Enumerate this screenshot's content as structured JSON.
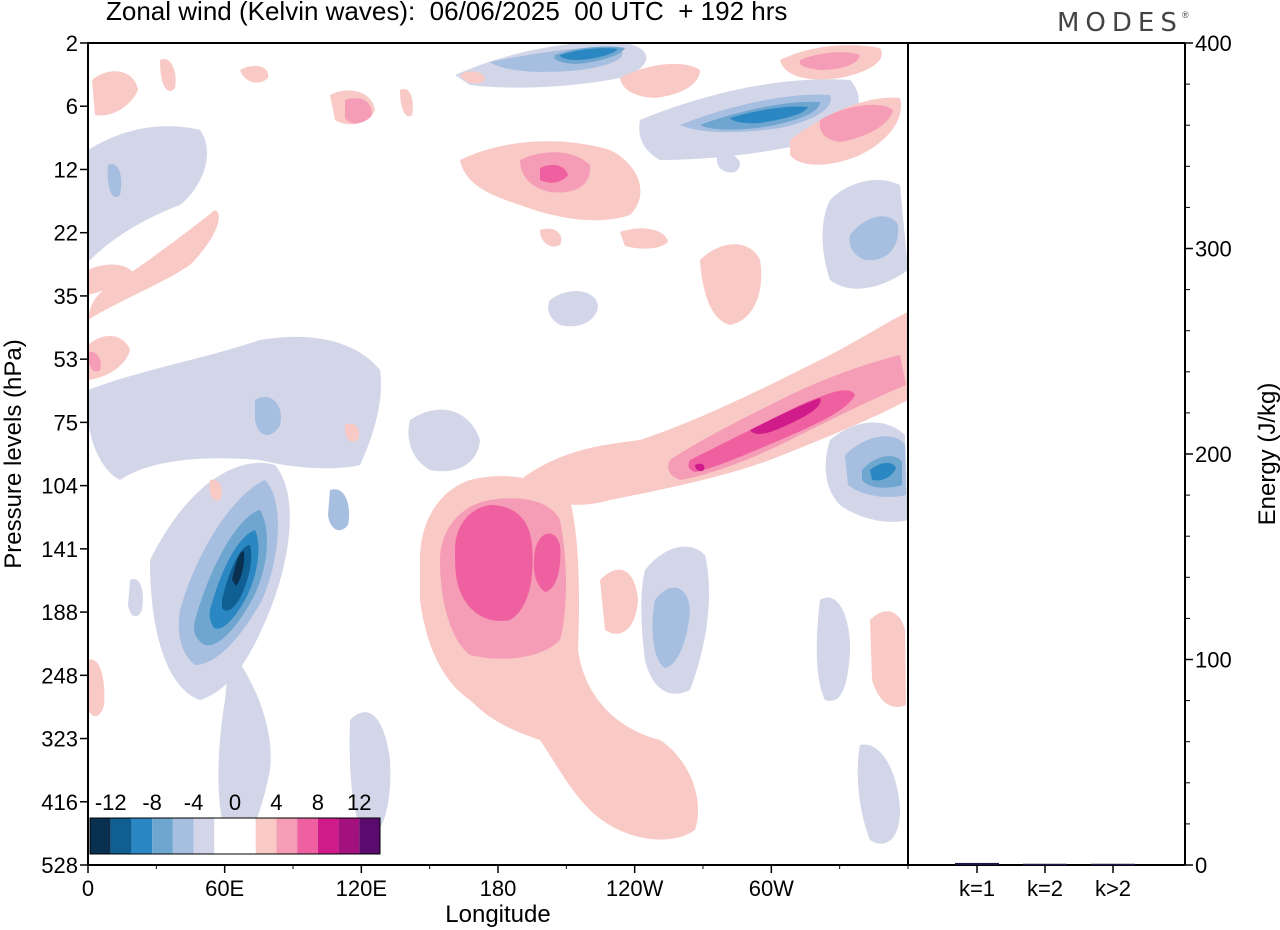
{
  "header": {
    "title": "Zonal wind (Kelvin waves):  06/06/2025  00 UTC  + 192 hrs",
    "brand": "MODES",
    "brand_mark": "®"
  },
  "chart_data": [
    {
      "type": "heatmap",
      "title": "Zonal wind (Kelvin waves):  06/06/2025  00 UTC  + 192 hrs",
      "xlabel": "Longitude",
      "ylabel": "Pressure levels (hPa)",
      "x_ticks": [
        "0",
        "60E",
        "120E",
        "180",
        "120W",
        "60W"
      ],
      "x_tick_degrees": [
        0,
        60,
        120,
        180,
        240,
        300
      ],
      "x_range_degrees": [
        0,
        360
      ],
      "y_ticks": [
        "2",
        "6",
        "12",
        "22",
        "35",
        "53",
        "75",
        "104",
        "141",
        "188",
        "248",
        "323",
        "416",
        "528"
      ],
      "y_scale": "model levels (categorical, top to bottom)",
      "colorbar": {
        "labels": [
          "-12",
          "-8",
          "-4",
          "0",
          "4",
          "8",
          "12"
        ],
        "colors": [
          "#0a3050",
          "#0f5f93",
          "#2b87c2",
          "#6fa6d0",
          "#a6bedf",
          "#d2d6e8",
          "#ffffff",
          "#ffffff",
          "#f8c9c5",
          "#f59db6",
          "#ee60a0",
          "#cf1c8a",
          "#a3117e",
          "#5a0c6e"
        ],
        "placement": "bottom-left"
      },
      "grid": false
    },
    {
      "type": "bar",
      "categories": [
        "k=1",
        "k=2",
        "k>2"
      ],
      "values": [
        1,
        0.6,
        0.6
      ],
      "ylabel": "Energy (J/kg)",
      "ylim": [
        0,
        400
      ],
      "y_ticks": [
        "0",
        "100",
        "200",
        "300",
        "400"
      ],
      "y_axis_side": "right",
      "bar_color": "#1a1a4a"
    }
  ]
}
